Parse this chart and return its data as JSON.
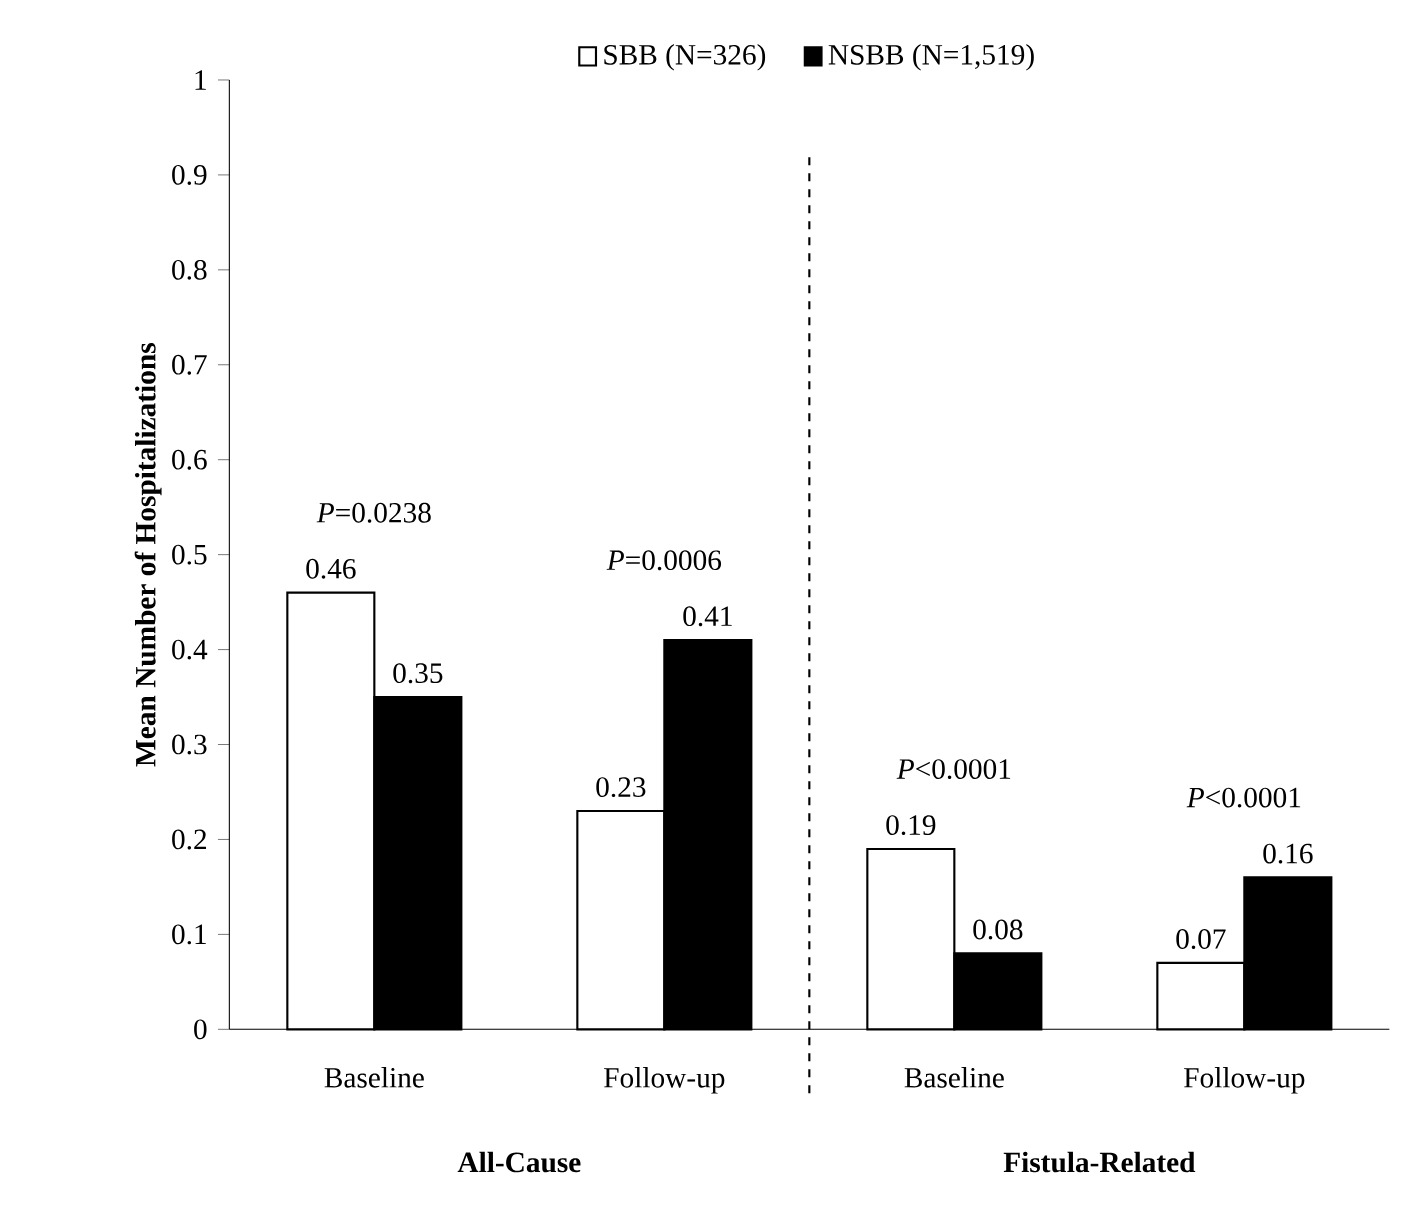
{
  "chart_data": {
    "type": "bar",
    "ylabel": "Mean Number of Hospitalizations",
    "categories": [
      "Baseline",
      "Follow-up",
      "Baseline",
      "Follow-up"
    ],
    "series": [
      {
        "name": "SBB (N=326)",
        "color": "#ffffff",
        "values": [
          0.46,
          0.23,
          0.19,
          0.07
        ]
      },
      {
        "name": "NSBB (N=1,519)",
        "color": "#000000",
        "values": [
          0.35,
          0.41,
          0.08,
          0.16
        ]
      }
    ],
    "ylim": [
      0,
      1
    ],
    "yticks": [
      0,
      0.1,
      0.2,
      0.3,
      0.4,
      0.5,
      0.6,
      0.7,
      0.8,
      0.9,
      1
    ],
    "data_labels": true,
    "legend": "top",
    "grid": false,
    "annotations": [
      "*P*=0.0238",
      "*P*=0.0006",
      "*P*<0.0001",
      "*P*<0.0001",
      "**All-Cause**",
      "**Fistula-Related**"
    ]
  }
}
